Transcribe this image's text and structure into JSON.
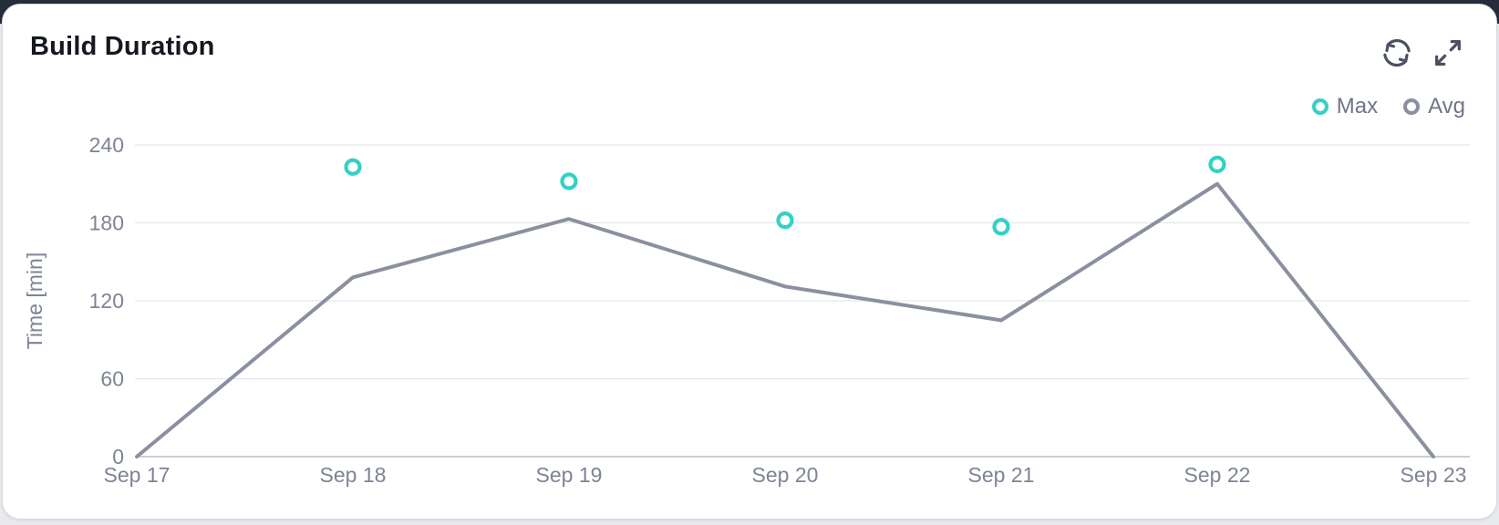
{
  "card": {
    "title": "Build Duration"
  },
  "toolbar": {
    "refresh_icon": "refresh-icon",
    "expand_icon": "expand-icon"
  },
  "legend": [
    {
      "label": "Max",
      "color": "#34d1c5"
    },
    {
      "label": "Avg",
      "color": "#8b90a0"
    }
  ],
  "chart_data": {
    "type": "line",
    "title": "Build Duration",
    "categories": [
      "Sep 17",
      "Sep 18",
      "Sep 19",
      "Sep 20",
      "Sep 21",
      "Sep 22",
      "Sep 23"
    ],
    "series": [
      {
        "name": "Max",
        "type": "scatter",
        "color": "#34d1c5",
        "values": [
          null,
          223,
          212,
          182,
          177,
          225,
          null
        ]
      },
      {
        "name": "Avg",
        "type": "line",
        "color": "#8b90a0",
        "values": [
          0,
          138,
          183,
          131,
          105,
          210,
          0
        ]
      }
    ],
    "xlabel": "",
    "ylabel": "Time [min]",
    "yticks": [
      0,
      60,
      120,
      180,
      240
    ],
    "ylim": [
      0,
      255
    ],
    "grid": true,
    "legend_position": "top-right"
  },
  "colors": {
    "grid_line": "#e4e6ec",
    "baseline": "#c9cdd7",
    "axis_text": "#7d8496",
    "title_text": "#15181f",
    "icon": "#4a5160",
    "card_bg": "#ffffff",
    "page_bg": "#e9eaee",
    "top_bar": "#272c3a"
  }
}
